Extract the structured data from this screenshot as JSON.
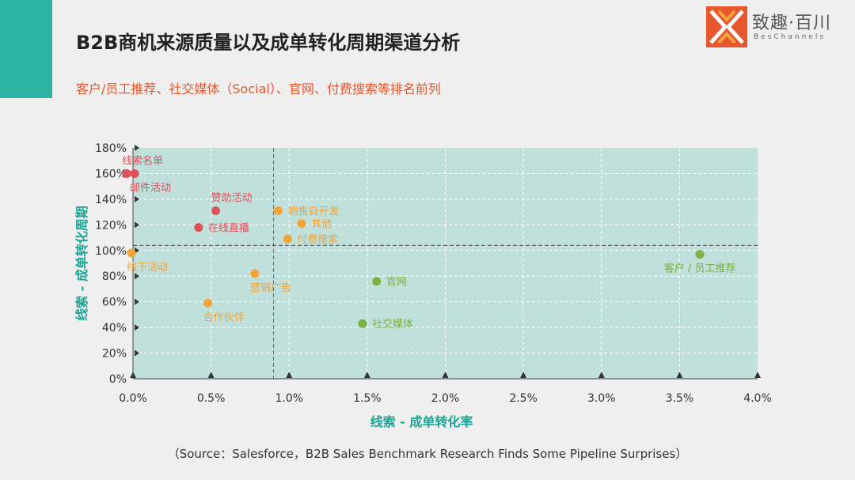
{
  "header": {
    "title": "B2B商机来源质量以及成单转化周期渠道分析",
    "subtitle": "客户/员工推荐、社交媒体（Social）、官网、付费搜索等排名前列"
  },
  "logo": {
    "name": "致趣·百川",
    "sub": "BesChannels",
    "colors": [
      "#e8572b",
      "#f4a43c"
    ]
  },
  "footer": {
    "source": "（Source：Salesforce，B2B Sales Benchmark Research Finds Some Pipeline Surprises）"
  },
  "colors": {
    "accent": "#2bb3a6",
    "plot_bg": "#bfe0db",
    "title": "#222222",
    "subtitle": "#e4572e",
    "axis_label": "#1aa596"
  },
  "chart_data": {
    "type": "scatter",
    "xlabel": "线索 - 成单转化率",
    "ylabel": "线索 - 成单转化周期",
    "xlim": [
      0,
      4.0
    ],
    "ylim": [
      0,
      180
    ],
    "x_ticks": [
      {
        "value": 0.0,
        "label": "0.0%"
      },
      {
        "value": 0.5,
        "label": "0.5%"
      },
      {
        "value": 1.0,
        "label": "1.0%"
      },
      {
        "value": 1.5,
        "label": "1.5%"
      },
      {
        "value": 2.0,
        "label": "2.0%"
      },
      {
        "value": 2.5,
        "label": "2.5%"
      },
      {
        "value": 3.0,
        "label": "3.0%"
      },
      {
        "value": 3.5,
        "label": "3.5%"
      },
      {
        "value": 4.0,
        "label": "4.0%"
      }
    ],
    "y_ticks": [
      {
        "value": 0,
        "label": "0%"
      },
      {
        "value": 20,
        "label": "20%"
      },
      {
        "value": 40,
        "label": "40%"
      },
      {
        "value": 60,
        "label": "60%"
      },
      {
        "value": 80,
        "label": "80%"
      },
      {
        "value": 100,
        "label": "100%"
      },
      {
        "value": 120,
        "label": "120%"
      },
      {
        "value": 140,
        "label": "140%"
      },
      {
        "value": 160,
        "label": "160%"
      },
      {
        "value": 180,
        "label": "180%"
      }
    ],
    "reference_lines": {
      "x": 0.9,
      "y": 104
    },
    "grid": true,
    "points": [
      {
        "label": "线索名单",
        "x": -0.04,
        "y": 160,
        "color": "#e0505b",
        "label_pos": "above"
      },
      {
        "label": "邮件活动",
        "x": 0.01,
        "y": 160,
        "color": "#e0505b",
        "label_pos": "below-right"
      },
      {
        "label": "赞助活动",
        "x": 0.53,
        "y": 131,
        "color": "#e0505b",
        "label_pos": "above"
      },
      {
        "label": "在线直播",
        "x": 0.42,
        "y": 118,
        "color": "#e0505b",
        "label_pos": "right"
      },
      {
        "label": "销售自开发",
        "x": 0.93,
        "y": 131,
        "color": "#f2a33a",
        "label_pos": "right"
      },
      {
        "label": "其他",
        "x": 1.08,
        "y": 121,
        "color": "#f2a33a",
        "label_pos": "right"
      },
      {
        "label": "付费搜索",
        "x": 0.99,
        "y": 109,
        "color": "#f2a33a",
        "label_pos": "right"
      },
      {
        "label": "线下活动",
        "x": -0.01,
        "y": 98,
        "color": "#f2a33a",
        "label_pos": "below-right"
      },
      {
        "label": "营销广告",
        "x": 0.78,
        "y": 82,
        "color": "#f2a33a",
        "label_pos": "below-right"
      },
      {
        "label": "合作伙伴",
        "x": 0.48,
        "y": 59,
        "color": "#f2a33a",
        "label_pos": "below-right"
      },
      {
        "label": "官网",
        "x": 1.56,
        "y": 76,
        "color": "#7ab341",
        "label_pos": "right"
      },
      {
        "label": "社交媒体",
        "x": 1.47,
        "y": 43,
        "color": "#7ab341",
        "label_pos": "right"
      },
      {
        "label": "客户 / 员工推荐",
        "x": 3.63,
        "y": 97,
        "color": "#7ab341",
        "label_pos": "below"
      }
    ]
  }
}
